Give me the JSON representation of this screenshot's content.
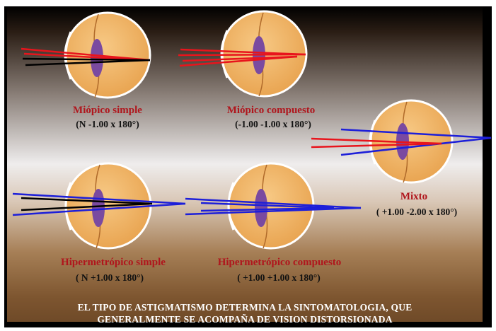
{
  "diagrams": [
    {
      "name": "Miópico simple",
      "formula": "(N -1.00 x 180°)"
    },
    {
      "name": "Miópico  compuesto",
      "formula": "(-1.00 -1.00 x 180°)"
    },
    {
      "name": "Mixto",
      "formula": "( +1.00 -2.00 x 180°)"
    },
    {
      "name": "Hipermetrópico  simple",
      "formula": "( N +1.00 x 180°)"
    },
    {
      "name": "Hipermetrópico  compuesto",
      "formula": "( +1.00 +1.00 x 180°)"
    }
  ],
  "footer": {
    "line1": "EL TIPO DE ASTIGMATISMO  DETERMINA  LA SINTOMATOLOGIA,  QUE",
    "line2": "GENERALMENTE  SE ACOMPAÑA DE VISION DISTORSIONADA"
  },
  "colors": {
    "eye_fill": "#f3b868",
    "eye_outline": "#ffffff",
    "lens": "#7a4aa0",
    "red_ray": "#e8141c",
    "blue_ray": "#1d1fd9",
    "black_ray": "#000000",
    "label_red": "#b0151c"
  }
}
